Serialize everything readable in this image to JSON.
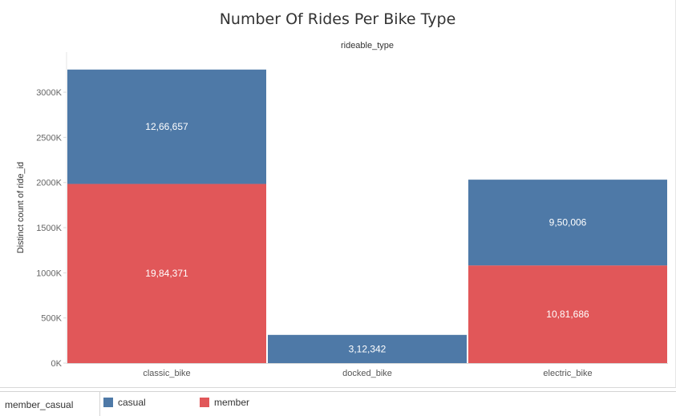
{
  "chart_data": {
    "type": "bar",
    "stacked": true,
    "title": "Number Of Rides Per Bike Type",
    "column_header": "rideable_type",
    "ylabel": "Distinct count of ride_id",
    "categories": [
      "classic_bike",
      "docked_bike",
      "electric_bike"
    ],
    "series": [
      {
        "name": "member",
        "color": "#e15759",
        "values": [
          1984371,
          0,
          1081686
        ],
        "labels": [
          "19,84,371",
          "",
          "10,81,686"
        ]
      },
      {
        "name": "casual",
        "color": "#4e79a7",
        "values": [
          1266657,
          312342,
          950006
        ],
        "labels": [
          "12,66,657",
          "3,12,342",
          "9,50,006"
        ]
      }
    ],
    "yticks": [
      {
        "value": 0,
        "label": "0K"
      },
      {
        "value": 500000,
        "label": "500K"
      },
      {
        "value": 1000000,
        "label": "1000K"
      },
      {
        "value": 1500000,
        "label": "1500K"
      },
      {
        "value": 2000000,
        "label": "2000K"
      },
      {
        "value": 2500000,
        "label": "2500K"
      },
      {
        "value": 3000000,
        "label": "3000K"
      }
    ],
    "ylim": [
      0,
      3400000
    ],
    "grid": false,
    "legend": {
      "title": "member_casual",
      "placement": "bottom",
      "entries": [
        {
          "name": "casual",
          "color": "#4e79a7"
        },
        {
          "name": "member",
          "color": "#e15759"
        }
      ]
    }
  }
}
